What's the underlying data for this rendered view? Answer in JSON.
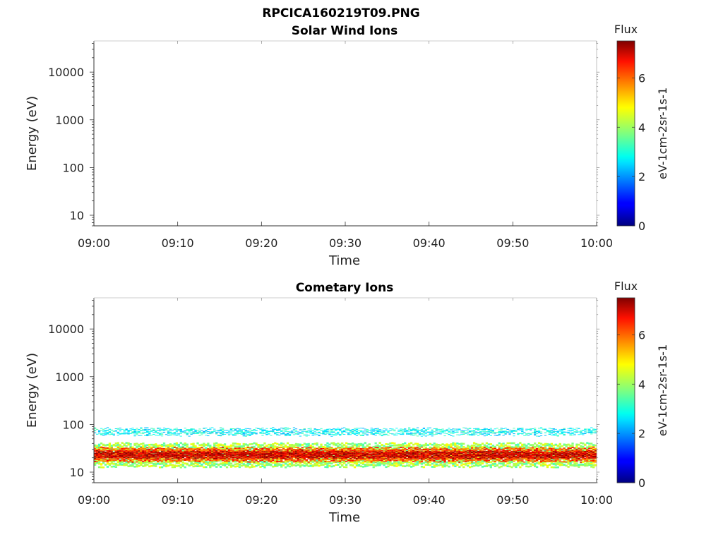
{
  "figure_title": "RPCICA160219T09.PNG",
  "chart_data": [
    {
      "type": "heatmap",
      "title": "Solar Wind Ions",
      "xlabel": "Time",
      "ylabel": "Energy (eV)",
      "x_ticks": [
        "09:00",
        "09:10",
        "09:20",
        "09:30",
        "09:40",
        "09:50",
        "10:00"
      ],
      "xlim": [
        "09:00",
        "10:00"
      ],
      "y_scale": "log",
      "y_ticks": [
        10,
        100,
        1000,
        10000
      ],
      "ylim": [
        6,
        45000
      ],
      "colorbar": {
        "title": "Flux",
        "label": "eV-1cm-2sr-1s-1",
        "range": [
          0,
          7.5
        ],
        "ticks": [
          0,
          2,
          4,
          6
        ],
        "colormap": "jet"
      },
      "signal": []
    },
    {
      "type": "heatmap",
      "title": "Cometary Ions",
      "xlabel": "Time",
      "ylabel": "Energy (eV)",
      "x_ticks": [
        "09:00",
        "09:10",
        "09:20",
        "09:30",
        "09:40",
        "09:50",
        "10:00"
      ],
      "xlim": [
        "09:00",
        "10:00"
      ],
      "y_scale": "log",
      "y_ticks": [
        10,
        100,
        1000,
        10000
      ],
      "ylim": [
        6,
        45000
      ],
      "colorbar": {
        "title": "Flux",
        "label": "eV-1cm-2sr-1s-1",
        "range": [
          0,
          7.5
        ],
        "ticks": [
          0,
          2,
          4,
          6
        ],
        "colormap": "jet"
      },
      "signal": [
        {
          "e_min": 13,
          "e_max": 40,
          "flux": 4.0,
          "fill": 0.9
        },
        {
          "e_min": 17,
          "e_max": 32,
          "flux": 6.0,
          "fill": 1.0
        },
        {
          "e_min": 20,
          "e_max": 27,
          "flux": 7.0,
          "fill": 1.0
        },
        {
          "e_min": 60,
          "e_max": 82,
          "flux": 2.8,
          "fill": 0.45
        }
      ]
    }
  ]
}
